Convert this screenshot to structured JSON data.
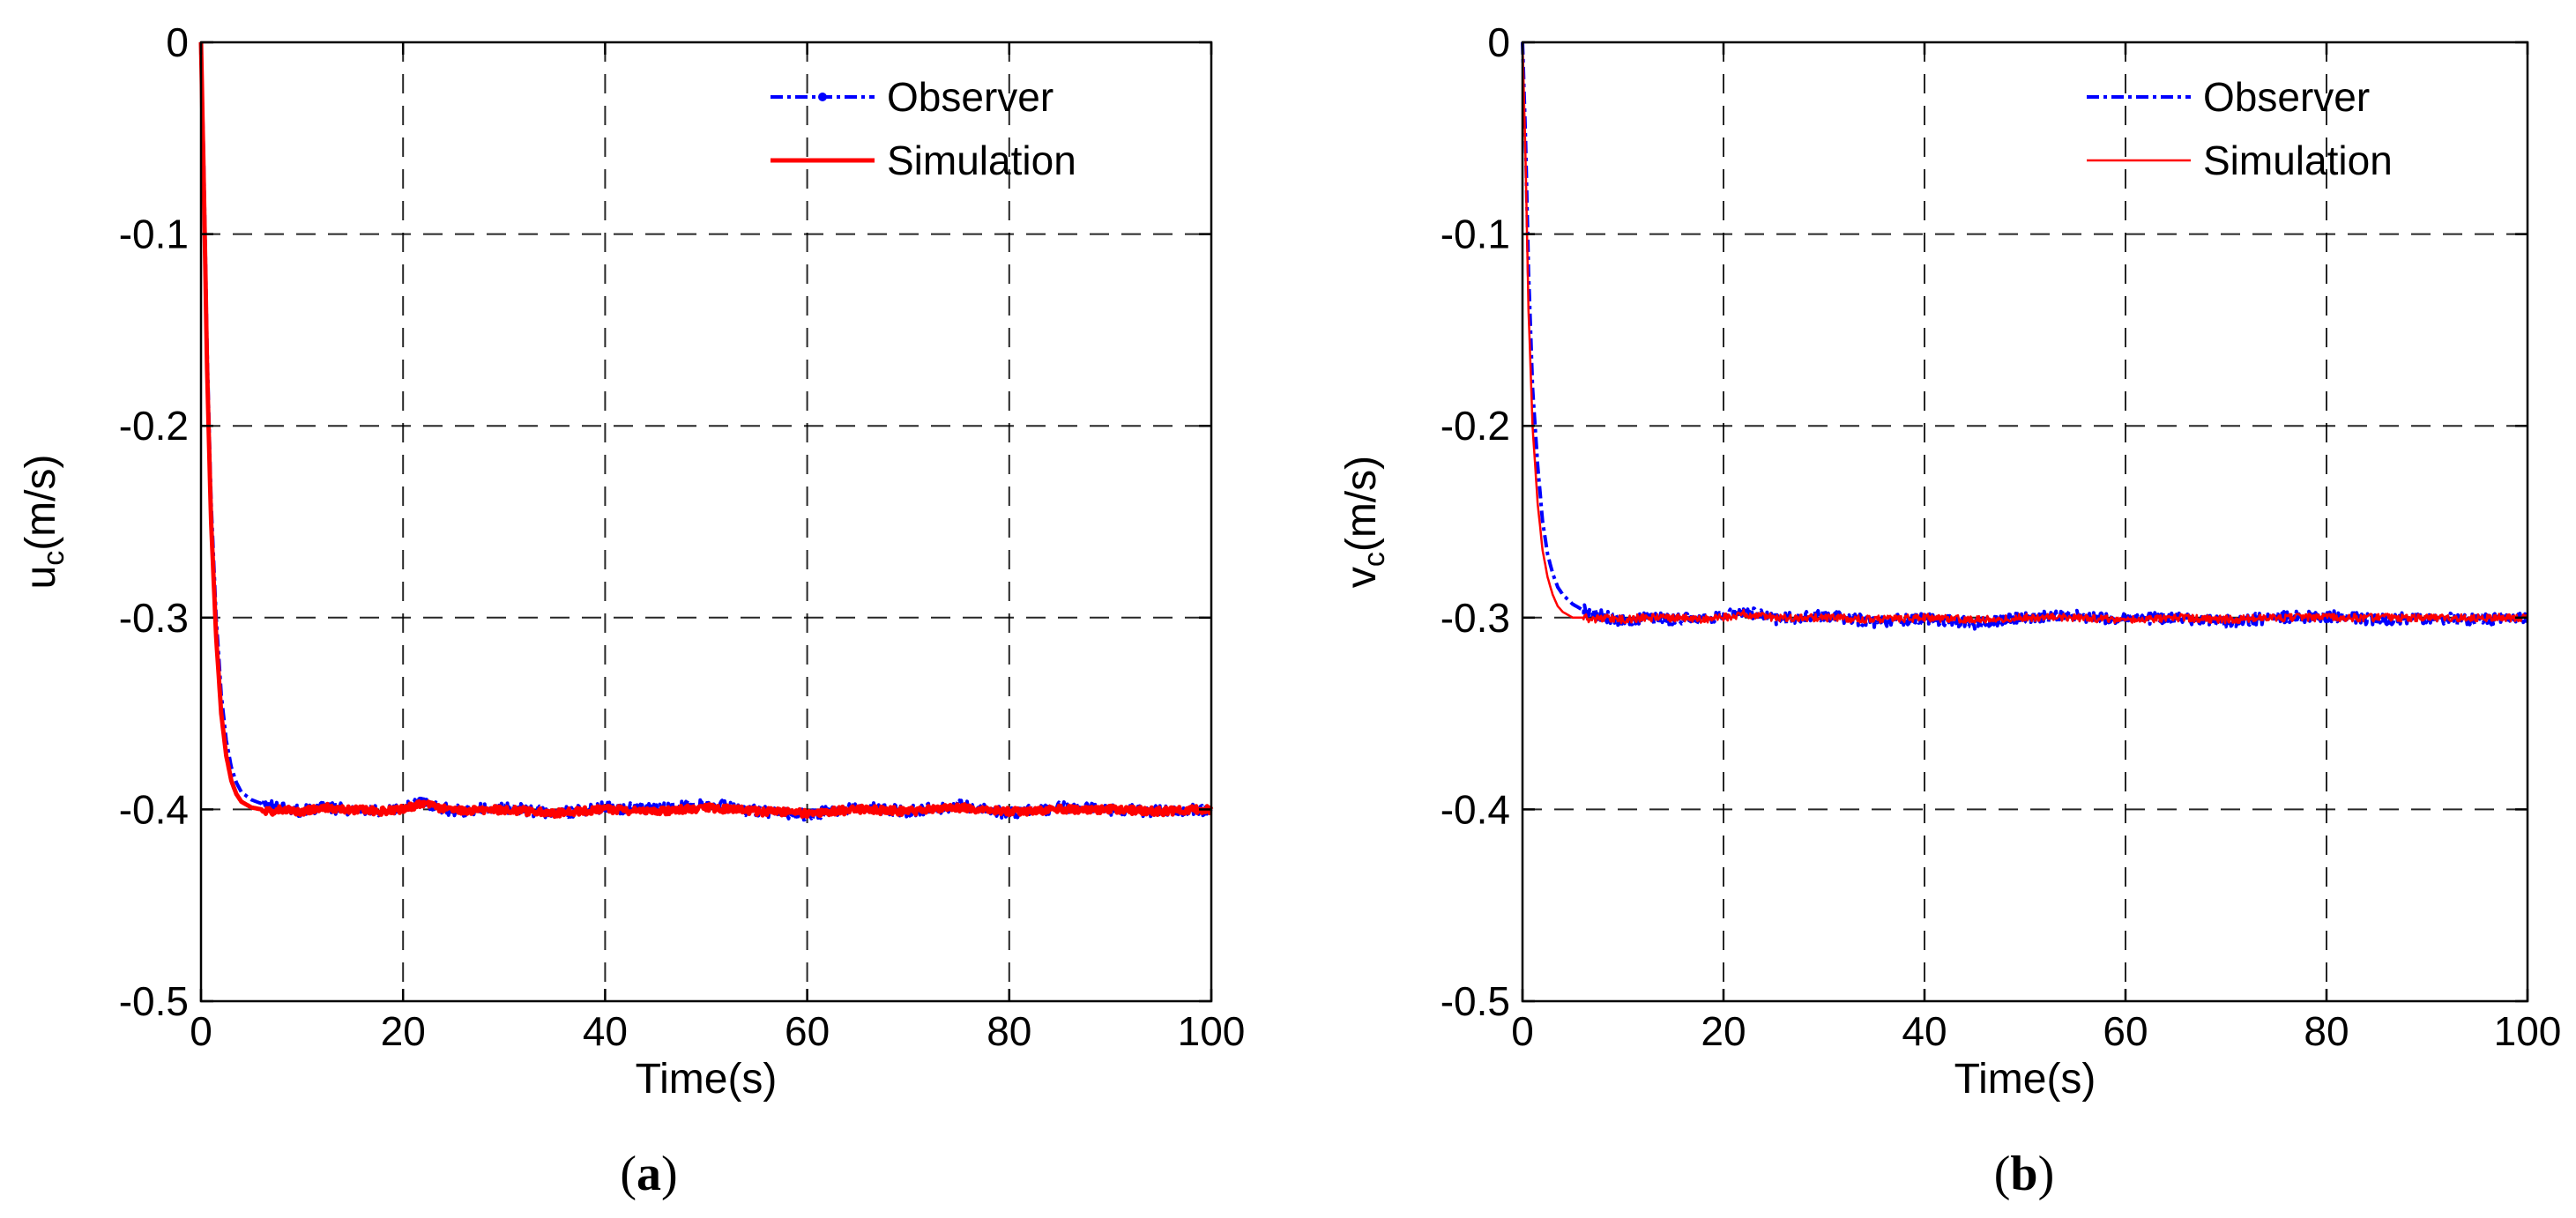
{
  "chart_data": [
    {
      "type": "line",
      "panel": "(a)",
      "panel_letter": "a",
      "xlabel": "Time(s)",
      "ylabel_main": "u",
      "ylabel_sub": "c",
      "ylabel_rest": "(m/s)",
      "xlim": [
        0,
        100
      ],
      "ylim": [
        -0.5,
        0
      ],
      "xticks": [
        0,
        20,
        40,
        60,
        80,
        100
      ],
      "xtick_labels": [
        "0",
        "20",
        "40",
        "60",
        "80",
        "100"
      ],
      "yticks": [
        0,
        -0.1,
        -0.2,
        -0.3,
        -0.4,
        -0.5
      ],
      "ytick_labels": [
        "0",
        "-0.1",
        "-0.2",
        "-0.3",
        "-0.4",
        "-0.5"
      ],
      "grid": true,
      "legend_position": "top-right",
      "steady_value": -0.4,
      "series": [
        {
          "name": "Observer",
          "color": "#0000ff",
          "style": "dash-dot with markers",
          "x": [
            0,
            0.3,
            0.6,
            1,
            1.5,
            2,
            2.5,
            3,
            3.5,
            4,
            5,
            6,
            7,
            8,
            10,
            12,
            15,
            18,
            20,
            22,
            25,
            30,
            35,
            40,
            45,
            50,
            55,
            60,
            65,
            70,
            75,
            80,
            85,
            90,
            95,
            100
          ],
          "y": [
            0,
            -0.07,
            -0.16,
            -0.24,
            -0.3,
            -0.34,
            -0.364,
            -0.378,
            -0.386,
            -0.391,
            -0.395,
            -0.397,
            -0.398,
            -0.399,
            -0.401,
            -0.399,
            -0.4,
            -0.401,
            -0.399,
            -0.396,
            -0.401,
            -0.399,
            -0.402,
            -0.399,
            -0.4,
            -0.397,
            -0.401,
            -0.403,
            -0.399,
            -0.401,
            -0.398,
            -0.402,
            -0.399,
            -0.4,
            -0.401,
            -0.4
          ]
        },
        {
          "name": "Simulation",
          "color": "#ff0000",
          "style": "solid",
          "x": [
            0,
            0.3,
            0.6,
            1,
            1.5,
            2,
            2.5,
            3,
            3.5,
            4,
            5,
            6,
            7,
            8,
            10,
            12,
            15,
            18,
            20,
            22,
            25,
            30,
            35,
            40,
            45,
            50,
            55,
            60,
            65,
            70,
            75,
            80,
            85,
            90,
            95,
            100
          ],
          "y": [
            0,
            -0.08,
            -0.17,
            -0.25,
            -0.31,
            -0.35,
            -0.372,
            -0.385,
            -0.392,
            -0.396,
            -0.399,
            -0.4,
            -0.401,
            -0.4,
            -0.401,
            -0.399,
            -0.4,
            -0.401,
            -0.4,
            -0.397,
            -0.401,
            -0.4,
            -0.402,
            -0.4,
            -0.401,
            -0.399,
            -0.401,
            -0.402,
            -0.4,
            -0.401,
            -0.399,
            -0.401,
            -0.4,
            -0.4,
            -0.401,
            -0.4
          ]
        }
      ]
    },
    {
      "type": "line",
      "panel": "(b)",
      "panel_letter": "b",
      "xlabel": "Time(s)",
      "ylabel_main": "v",
      "ylabel_sub": "c",
      "ylabel_rest": "(m/s)",
      "xlim": [
        0,
        100
      ],
      "ylim": [
        -0.5,
        0
      ],
      "xticks": [
        0,
        20,
        40,
        60,
        80,
        100
      ],
      "xtick_labels": [
        "0",
        "20",
        "40",
        "60",
        "80",
        "100"
      ],
      "yticks": [
        0,
        -0.1,
        -0.2,
        -0.3,
        -0.4,
        -0.5
      ],
      "ytick_labels": [
        "0",
        "-0.1",
        "-0.2",
        "-0.3",
        "-0.4",
        "-0.5"
      ],
      "grid": true,
      "legend_position": "top-right",
      "steady_value": -0.3,
      "series": [
        {
          "name": "Observer",
          "color": "#0000ff",
          "style": "dash-dot",
          "x": [
            0,
            0.3,
            0.6,
            1,
            1.5,
            2,
            2.5,
            3,
            3.5,
            4,
            5,
            6,
            7,
            8,
            10,
            12,
            15,
            18,
            20,
            22,
            25,
            30,
            35,
            40,
            45,
            50,
            55,
            60,
            65,
            70,
            75,
            80,
            85,
            90,
            95,
            100
          ],
          "y": [
            0,
            -0.05,
            -0.12,
            -0.18,
            -0.22,
            -0.25,
            -0.267,
            -0.277,
            -0.284,
            -0.288,
            -0.293,
            -0.296,
            -0.298,
            -0.299,
            -0.302,
            -0.3,
            -0.301,
            -0.3,
            -0.299,
            -0.296,
            -0.301,
            -0.299,
            -0.302,
            -0.3,
            -0.303,
            -0.3,
            -0.299,
            -0.301,
            -0.3,
            -0.302,
            -0.3,
            -0.299,
            -0.301,
            -0.3,
            -0.301,
            -0.3
          ]
        },
        {
          "name": "Simulation",
          "color": "#ff0000",
          "style": "solid thin",
          "x": [
            0,
            0.3,
            0.6,
            1,
            1.5,
            2,
            2.5,
            3,
            3.5,
            4,
            5,
            6,
            7,
            8,
            10,
            12,
            15,
            18,
            20,
            22,
            25,
            30,
            35,
            40,
            45,
            50,
            55,
            60,
            65,
            70,
            75,
            80,
            85,
            90,
            95,
            100
          ],
          "y": [
            0,
            -0.06,
            -0.14,
            -0.2,
            -0.24,
            -0.265,
            -0.279,
            -0.288,
            -0.294,
            -0.297,
            -0.3,
            -0.3,
            -0.301,
            -0.3,
            -0.301,
            -0.3,
            -0.3,
            -0.301,
            -0.3,
            -0.298,
            -0.3,
            -0.3,
            -0.301,
            -0.3,
            -0.301,
            -0.3,
            -0.3,
            -0.301,
            -0.3,
            -0.301,
            -0.3,
            -0.3,
            -0.3,
            -0.3,
            -0.3,
            -0.3
          ]
        }
      ]
    }
  ]
}
